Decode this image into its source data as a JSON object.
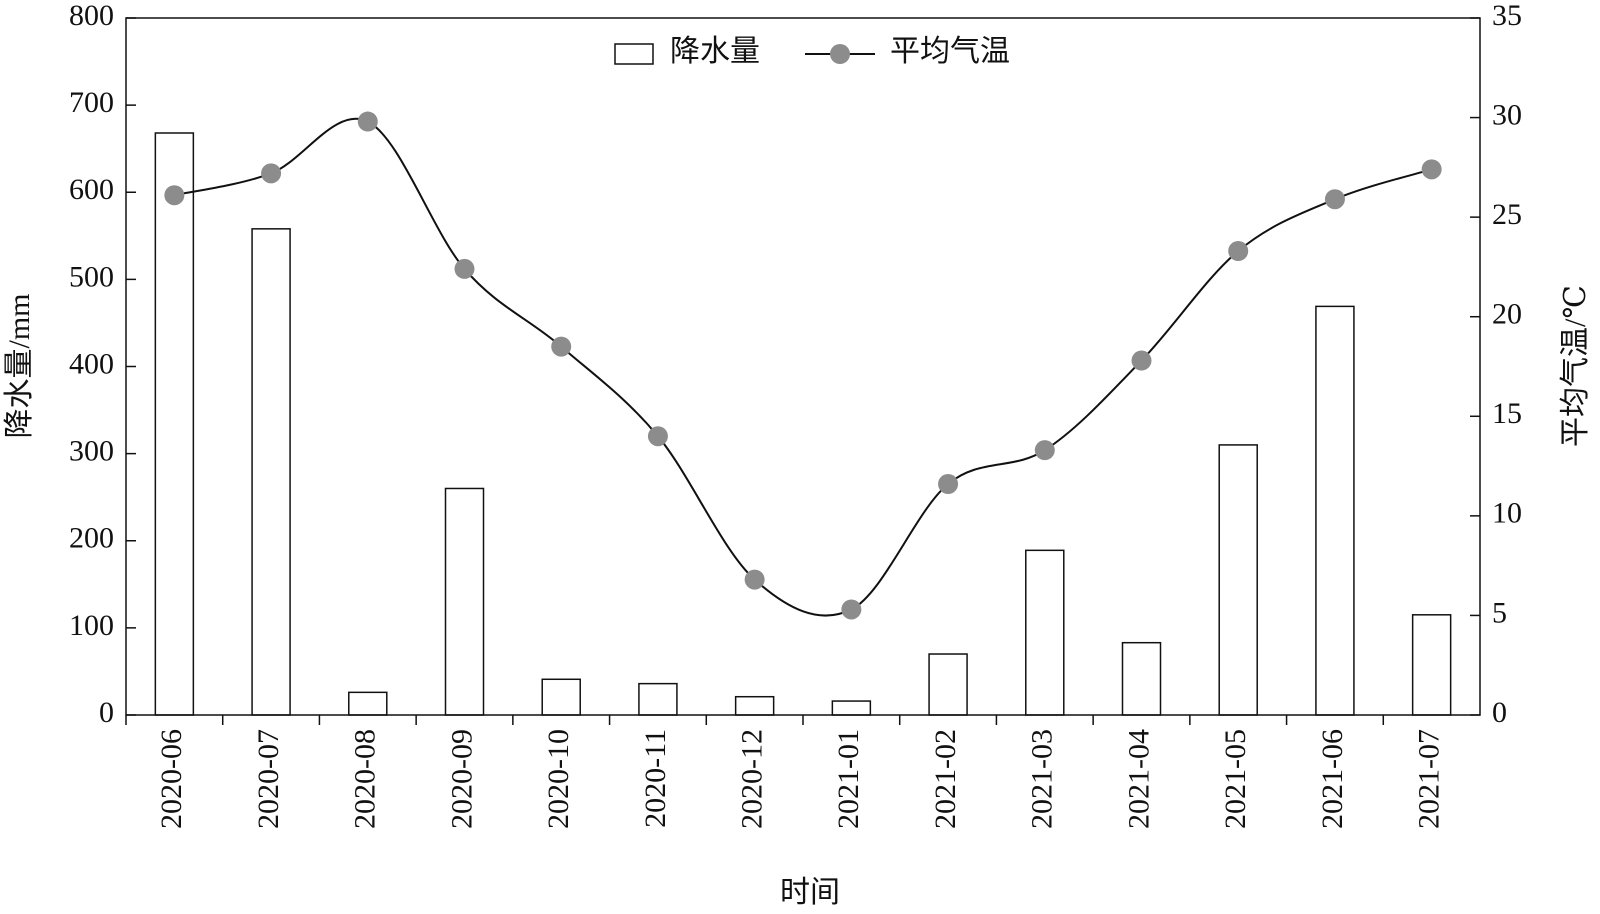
{
  "chart_data": {
    "type": "bar",
    "x_label": "时间",
    "y_label": "降水量/mm",
    "y2_label": "平均气温/℃",
    "categories": [
      "2020-06",
      "2020-07",
      "2020-08",
      "2020-09",
      "2020-10",
      "2020-11",
      "2020-12",
      "2021-01",
      "2021-02",
      "2021-03",
      "2021-04",
      "2021-05",
      "2021-06",
      "2021-07"
    ],
    "series": [
      {
        "name": "降水量",
        "type": "bar",
        "color": "#ffffff",
        "values": [
          668,
          558,
          26,
          260,
          41,
          36,
          21,
          16,
          70,
          189,
          83,
          310,
          469,
          115
        ]
      },
      {
        "name": "平均气温",
        "type": "line",
        "axis": "y2",
        "color": "#8c8c8c",
        "values": [
          26.1,
          27.2,
          29.8,
          22.4,
          18.5,
          14.0,
          6.8,
          5.3,
          11.6,
          13.3,
          17.8,
          23.3,
          25.9,
          27.4
        ]
      }
    ],
    "ylim": [
      0,
      800
    ],
    "yticks": [
      0,
      100,
      200,
      300,
      400,
      500,
      600,
      700,
      800
    ],
    "y2lim": [
      0,
      35
    ],
    "y2ticks": [
      0,
      5,
      10,
      15,
      20,
      25,
      30,
      35
    ],
    "legend": "top"
  }
}
